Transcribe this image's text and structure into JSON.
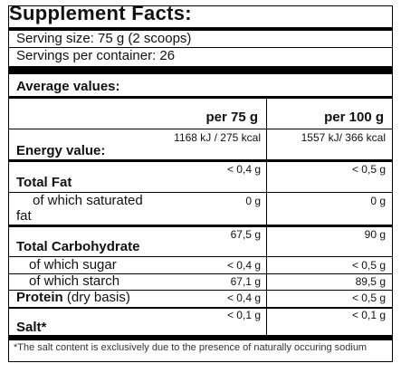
{
  "title": "Supplement Facts:",
  "serving_size": "Serving size: 75 g (2 scoops)",
  "servings_per_container": "Servings per container: 26",
  "average_values": "Average values:",
  "columns": {
    "col1": "per 75 g",
    "col2": "per 100 g"
  },
  "energy": {
    "label": "Energy value:",
    "col1": "1168 kJ / 275 kcal",
    "col2": "1557 kJ/ 366 kcal"
  },
  "total_fat": {
    "label": "Total Fat",
    "col1": "< 0,4 g",
    "col2": "< 0,5 g"
  },
  "saturated_fat": {
    "label_line1": "of which saturated",
    "label_line2": "fat",
    "col1": "0 g",
    "col2": "0 g"
  },
  "total_carbohydrate": {
    "label": "Total Carbohydrate",
    "col1": "67,5 g",
    "col2": "90 g"
  },
  "sugar": {
    "label": "of which sugar",
    "col1": "< 0,4 g",
    "col2": "< 0,5 g"
  },
  "starch": {
    "label": "of which starch",
    "col1": "67,1 g",
    "col2": "89,5 g"
  },
  "protein": {
    "label_bold": "Protein",
    "label_normal": " (dry basis)",
    "col1": "< 0,4 g",
    "col2": "< 0,5 g"
  },
  "salt": {
    "label": "Salt*",
    "col1": "< 0,1 g",
    "col2": "< 0,1 g"
  },
  "footnote": "*The salt content is exclusively due to the presence of naturally occuring sodium"
}
